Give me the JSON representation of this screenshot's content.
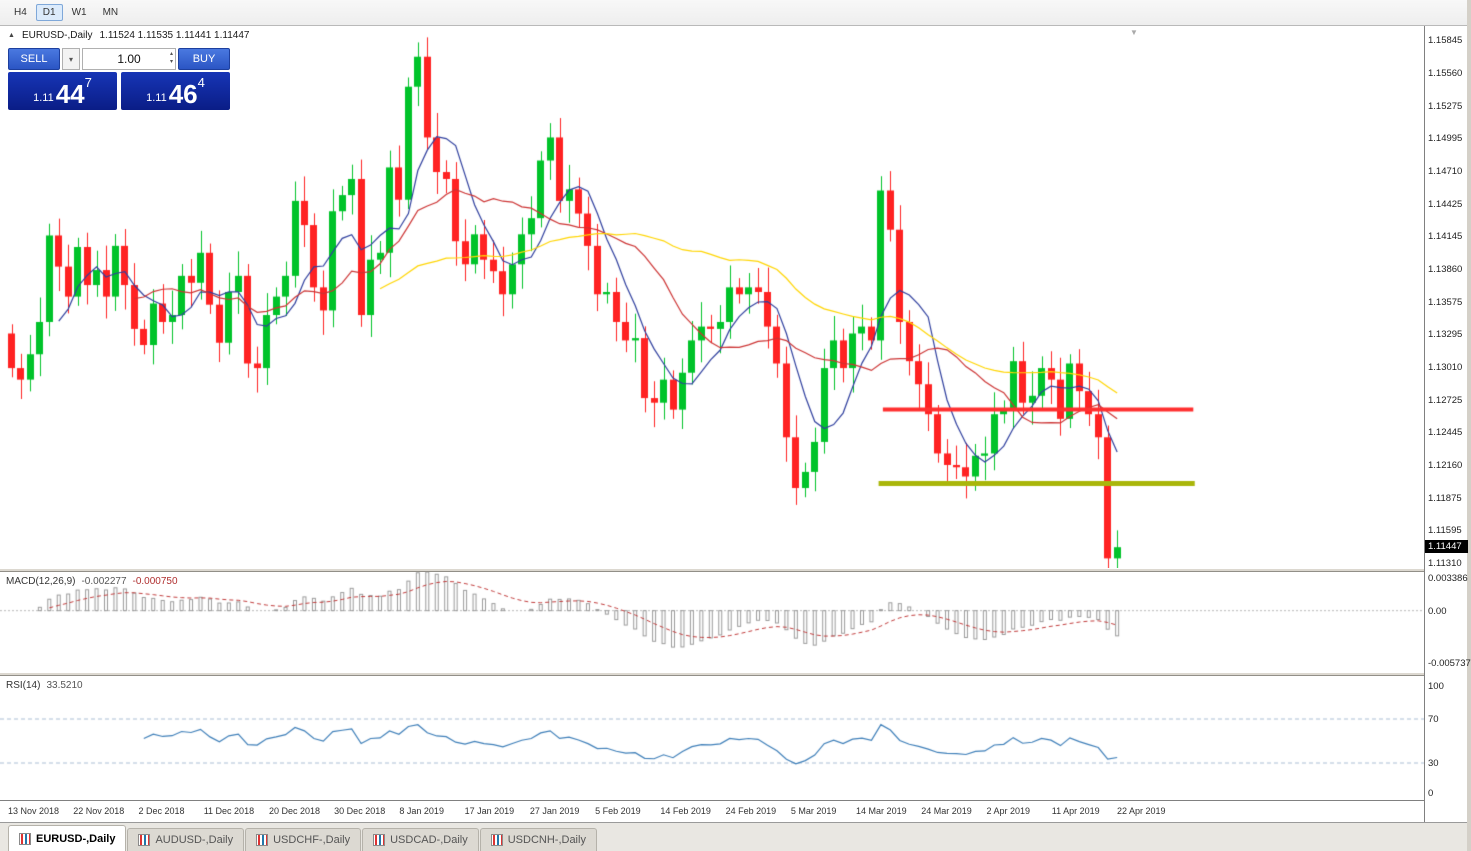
{
  "toolbar": {
    "timeframes": [
      {
        "label": "H4",
        "active": false
      },
      {
        "label": "D1",
        "active": true
      },
      {
        "label": "W1",
        "active": false
      },
      {
        "label": "MN",
        "active": false
      }
    ]
  },
  "icons": {
    "collapse": "▲",
    "shift_marker": "▼",
    "dropdown": "▾",
    "spinner_up": "▴",
    "spinner_down": "▾"
  },
  "chart": {
    "title_symbol": "EURUSD-,Daily",
    "ohlc": "1.11524 1.11535 1.11441 1.11447",
    "price_tag": "1.11447",
    "axis_max": 1.15845,
    "axis_min": 1.1131,
    "axis_labels": [
      "1.15845",
      "1.15560",
      "1.15275",
      "1.14995",
      "1.14710",
      "1.14425",
      "1.14145",
      "1.13860",
      "1.13575",
      "1.13295",
      "1.13010",
      "1.12725",
      "1.12445",
      "1.12160",
      "1.11875",
      "1.11595",
      "1.11310"
    ]
  },
  "one_click": {
    "sell_label": "SELL",
    "buy_label": "BUY",
    "volume": "1.00",
    "sell_price_small": "1.11",
    "sell_price_big": "44",
    "sell_price_sup": "7",
    "buy_price_small": "1.11",
    "buy_price_big": "46",
    "buy_price_sup": "4"
  },
  "macd": {
    "label": "MACD(12,26,9)",
    "value_main": "-0.002277",
    "value_signal": "-0.000750",
    "axis_labels": [
      "0.003386",
      "0.00",
      "-0.005737"
    ],
    "max": 0.003386,
    "min": -0.005737,
    "fast": 12,
    "slow": 26,
    "signal": 9,
    "histogram_color": "#9a9a9a",
    "signal_color": "#C03A3A"
  },
  "rsi": {
    "label": "RSI(14)",
    "value": "33.5210",
    "axis_labels": [
      "100",
      "70",
      "30",
      "0"
    ],
    "levels": [
      70,
      30
    ],
    "period": 14,
    "line_color": "#3D7EB8",
    "level_color": "#A8BDD4"
  },
  "dates": [
    "13 Nov 2018",
    "22 Nov 2018",
    "2 Dec 2018",
    "11 Dec 2018",
    "20 Dec 2018",
    "30 Dec 2018",
    "8 Jan 2019",
    "17 Jan 2019",
    "27 Jan 2019",
    "5 Feb 2019",
    "14 Feb 2019",
    "24 Feb 2019",
    "5 Mar 2019",
    "14 Mar 2019",
    "24 Mar 2019",
    "2 Apr 2019",
    "11 Apr 2019",
    "22 Apr 2019"
  ],
  "tabs": [
    {
      "label": "EURUSD-,Daily",
      "active": true
    },
    {
      "label": "AUDUSD-,Daily",
      "active": false
    },
    {
      "label": "USDCHF-,Daily",
      "active": false
    },
    {
      "label": "USDCAD-,Daily",
      "active": false
    },
    {
      "label": "USDCNH-,Daily",
      "active": false
    }
  ],
  "chart_data": {
    "type": "candlestick",
    "symbol": "EURUSD",
    "timeframe": "Daily",
    "ylim": [
      1.1131,
      1.15845
    ],
    "first_open": 1.133,
    "closes": [
      1.13,
      1.129,
      1.1312,
      1.134,
      1.1415,
      1.1388,
      1.1362,
      1.1405,
      1.1372,
      1.1385,
      1.1362,
      1.1406,
      1.1372,
      1.1334,
      1.132,
      1.1356,
      1.134,
      1.1346,
      1.138,
      1.1374,
      1.14,
      1.1355,
      1.1322,
      1.1366,
      1.138,
      1.1304,
      1.13,
      1.1346,
      1.1362,
      1.138,
      1.1445,
      1.1424,
      1.137,
      1.135,
      1.1436,
      1.145,
      1.1464,
      1.1346,
      1.1394,
      1.14,
      1.1474,
      1.1446,
      1.1544,
      1.157,
      1.15,
      1.147,
      1.1464,
      1.141,
      1.139,
      1.1416,
      1.1394,
      1.1384,
      1.1364,
      1.139,
      1.1416,
      1.143,
      1.148,
      1.15,
      1.1445,
      1.1455,
      1.1434,
      1.1406,
      1.1364,
      1.1366,
      1.134,
      1.1324,
      1.1326,
      1.1274,
      1.127,
      1.129,
      1.1264,
      1.1296,
      1.1324,
      1.1336,
      1.1334,
      1.134,
      1.137,
      1.1364,
      1.137,
      1.1366,
      1.1336,
      1.1304,
      1.124,
      1.1196,
      1.121,
      1.1236,
      1.13,
      1.1324,
      1.13,
      1.133,
      1.1336,
      1.1324,
      1.1454,
      1.142,
      1.134,
      1.1306,
      1.1286,
      1.126,
      1.1226,
      1.1216,
      1.1214,
      1.1206,
      1.1224,
      1.1226,
      1.126,
      1.1264,
      1.1306,
      1.127,
      1.1276,
      1.13,
      1.129,
      1.1256,
      1.1304,
      1.128,
      1.126,
      1.124,
      1.1135,
      1.11447
    ],
    "colors": {
      "up": "#00C32A",
      "down": "#FF2222"
    },
    "moving_averages": [
      {
        "period": 6,
        "color": "#2F3F9E"
      },
      {
        "period": 14,
        "color": "#CC3333"
      },
      {
        "period": 40,
        "color": "#FFD500"
      }
    ],
    "hlines": [
      {
        "name": "resistance-line",
        "price": 1.1264,
        "color": "#FF2F2F",
        "width": 4,
        "x1": 0.62,
        "x2": 0.838
      },
      {
        "name": "support-line",
        "price": 1.12,
        "color": "#A9B60A",
        "width": 5,
        "x1": 0.617,
        "x2": 0.839
      }
    ]
  }
}
